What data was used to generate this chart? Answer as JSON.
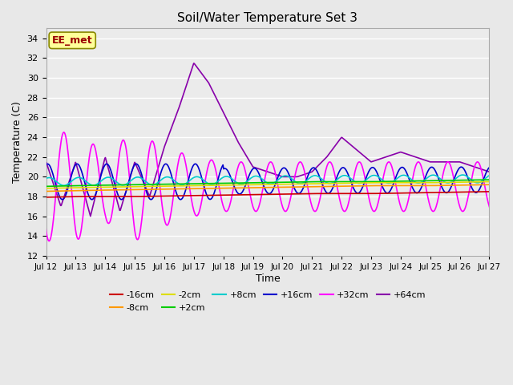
{
  "title": "Soil/Water Temperature Set 3",
  "xlabel": "Time",
  "ylabel": "Temperature (C)",
  "ylim": [
    12,
    35
  ],
  "yticks": [
    12,
    14,
    16,
    18,
    20,
    22,
    24,
    26,
    28,
    30,
    32,
    34
  ],
  "annotation": "EE_met",
  "background_color": "#e8e8e8",
  "plot_bg_color": "#ebebeb",
  "series_colors": {
    "-16cm": "#cc0000",
    "-8cm": "#ff9900",
    "-2cm": "#dddd00",
    "+2cm": "#00cc00",
    "+8cm": "#00cccc",
    "+16cm": "#0000cc",
    "+32cm": "#ff00ff",
    "+64cm": "#8800aa"
  },
  "xlim": [
    12,
    27
  ],
  "xtick_days": [
    12,
    13,
    14,
    15,
    16,
    17,
    18,
    19,
    20,
    21,
    22,
    23,
    24,
    25,
    26,
    27
  ],
  "xtick_labels": [
    "Jul 12",
    "Jul 13",
    "Jul 14",
    "Jul 15",
    "Jul 16",
    "Jul 17",
    "Jul 18",
    "Jul 19",
    "Jul 20",
    "Jul 21",
    "Jul 22",
    "Jul 23",
    "Jul 24",
    "Jul 25",
    "Jul 26",
    "Jul 27"
  ]
}
